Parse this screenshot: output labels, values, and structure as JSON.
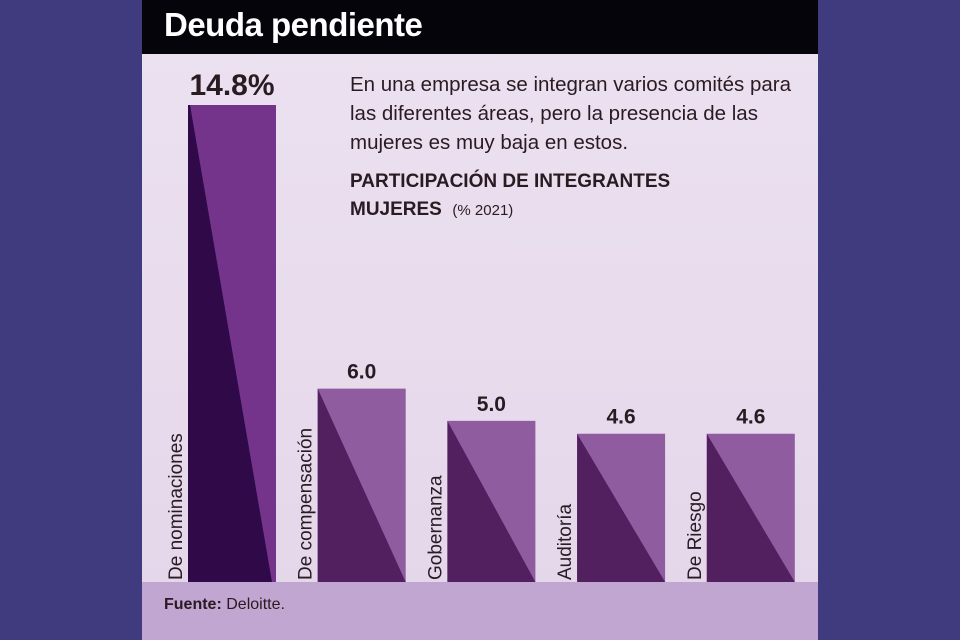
{
  "header": {
    "title": "Deuda pendiente"
  },
  "intro": "En una empresa se integran varios comités para las diferentes áreas, pero la presencia de las mujeres es muy baja en estos.",
  "subtitle": {
    "main_line1": "PARTICIPACIÓN DE INTEGRANTES",
    "main_line2": "MUJERES",
    "unit": "(% 2021)"
  },
  "footer": {
    "label": "Fuente:",
    "value": "Deloitte."
  },
  "colors": {
    "background": "#403a7f",
    "panel": "#e8dcec",
    "footer": "#c0a6d0",
    "first_bar_dark": "#300a48",
    "first_bar_light": "#74348c",
    "bar_dark": "#52205e",
    "bar_light": "#8f5ca0"
  },
  "chart_data": {
    "type": "bar",
    "categories": [
      "De nominaciones",
      "De compensación",
      "Gobernanza",
      "Auditoría",
      "De Riesgo"
    ],
    "values": [
      14.8,
      6.0,
      5.0,
      4.6,
      4.6
    ],
    "data_labels": [
      "14.8%",
      "6.0",
      "5.0",
      "4.6",
      "4.6"
    ],
    "ylim": [
      0,
      14.8
    ],
    "grid": false
  }
}
